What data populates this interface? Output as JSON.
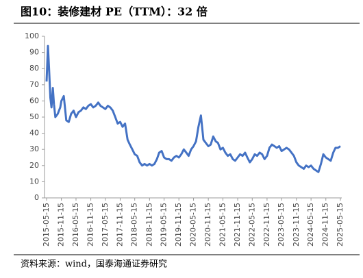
{
  "chart_data": {
    "type": "line",
    "title": "图10：装修建材 PE（TTM）：32 倍",
    "source": "资料来源：wind，国泰海通证券研究",
    "color": "#4472c4",
    "x": [
      "2015-05-15",
      "2015-06-01",
      "2015-06-15",
      "2015-07-01",
      "2015-07-15",
      "2015-08-01",
      "2015-08-15",
      "2015-09-01",
      "2015-10-01",
      "2015-11-01",
      "2015-11-15",
      "2015-12-15",
      "2016-01-15",
      "2016-02-15",
      "2016-03-15",
      "2016-04-15",
      "2016-05-15",
      "2016-06-15",
      "2016-07-15",
      "2016-08-15",
      "2016-09-15",
      "2016-10-15",
      "2016-11-15",
      "2016-12-15",
      "2017-01-15",
      "2017-02-15",
      "2017-03-15",
      "2017-04-15",
      "2017-05-15",
      "2017-06-15",
      "2017-07-15",
      "2017-08-15",
      "2017-09-15",
      "2017-10-15",
      "2017-11-15",
      "2017-12-15",
      "2018-01-15",
      "2018-02-15",
      "2018-03-15",
      "2018-04-15",
      "2018-05-15",
      "2018-06-15",
      "2018-07-15",
      "2018-08-15",
      "2018-09-15",
      "2018-10-15",
      "2018-11-15",
      "2018-12-15",
      "2019-01-15",
      "2019-02-15",
      "2019-03-15",
      "2019-04-15",
      "2019-05-15",
      "2019-06-15",
      "2019-07-15",
      "2019-08-15",
      "2019-09-15",
      "2019-10-15",
      "2019-11-15",
      "2019-12-15",
      "2020-01-15",
      "2020-02-15",
      "2020-03-15",
      "2020-04-15",
      "2020-05-15",
      "2020-06-15",
      "2020-07-15",
      "2020-08-15",
      "2020-09-15",
      "2020-10-15",
      "2020-11-15",
      "2020-12-15",
      "2021-01-15",
      "2021-02-15",
      "2021-03-15",
      "2021-04-15",
      "2021-05-15",
      "2021-06-15",
      "2021-07-15",
      "2021-08-15",
      "2021-09-15",
      "2021-10-15",
      "2021-11-15",
      "2021-12-15",
      "2022-01-15",
      "2022-02-15",
      "2022-03-15",
      "2022-04-15",
      "2022-05-15",
      "2022-06-15",
      "2022-07-15",
      "2022-08-15",
      "2022-09-15",
      "2022-10-15",
      "2022-11-15",
      "2022-12-15",
      "2023-01-15",
      "2023-02-15",
      "2023-03-15",
      "2023-04-15",
      "2023-05-15",
      "2023-06-15",
      "2023-07-15",
      "2023-08-15",
      "2023-09-15",
      "2023-10-15",
      "2023-11-15",
      "2023-12-15",
      "2024-01-15",
      "2024-02-15",
      "2024-03-15",
      "2024-04-15",
      "2024-05-15",
      "2024-06-15",
      "2024-07-15",
      "2024-08-15",
      "2024-09-15",
      "2024-10-15",
      "2024-11-15",
      "2024-12-15",
      "2025-01-15",
      "2025-02-15",
      "2025-03-15",
      "2025-04-15",
      "2025-05-15"
    ],
    "values": [
      72,
      94,
      80,
      62,
      56,
      68,
      58,
      50,
      52,
      56,
      60,
      63,
      48,
      47,
      52,
      54,
      50,
      53,
      54,
      56,
      55,
      57,
      58,
      56,
      57,
      59,
      57,
      56,
      55,
      57,
      56,
      54,
      50,
      46,
      47,
      44,
      46,
      36,
      33,
      30,
      27,
      26,
      22,
      20,
      21,
      20,
      21,
      20,
      21,
      24,
      28,
      29,
      25,
      24,
      24,
      23,
      25,
      26,
      25,
      27,
      30,
      28,
      26,
      30,
      32,
      35,
      44,
      51,
      36,
      34,
      32,
      33,
      38,
      35,
      34,
      30,
      31,
      28,
      26,
      27,
      24,
      23,
      25,
      27,
      26,
      28,
      25,
      22,
      24,
      27,
      26,
      28,
      27,
      24,
      26,
      31,
      33,
      32,
      31,
      32,
      29,
      30,
      31,
      30,
      28,
      26,
      22,
      20,
      19,
      18,
      20,
      19,
      20,
      18,
      17,
      16,
      21,
      27,
      25,
      24,
      23,
      28,
      31,
      31,
      32
    ],
    "xlim": [
      "2015-05-15",
      "2025-05-15"
    ],
    "xticks": [
      "2015-05-15",
      "2015-11-15",
      "2016-05-15",
      "2016-11-15",
      "2017-05-15",
      "2017-11-15",
      "2018-05-15",
      "2018-11-15",
      "2019-05-15",
      "2019-11-15",
      "2020-05-15",
      "2020-11-15",
      "2021-05-15",
      "2021-11-15",
      "2022-05-15",
      "2022-11-15",
      "2023-05-15",
      "2023-11-15",
      "2024-05-15",
      "2024-11-15",
      "2025-05-15"
    ],
    "ylim": [
      0,
      100
    ],
    "yticks": [
      0,
      10,
      20,
      30,
      40,
      50,
      60,
      70,
      80,
      90,
      100
    ]
  }
}
